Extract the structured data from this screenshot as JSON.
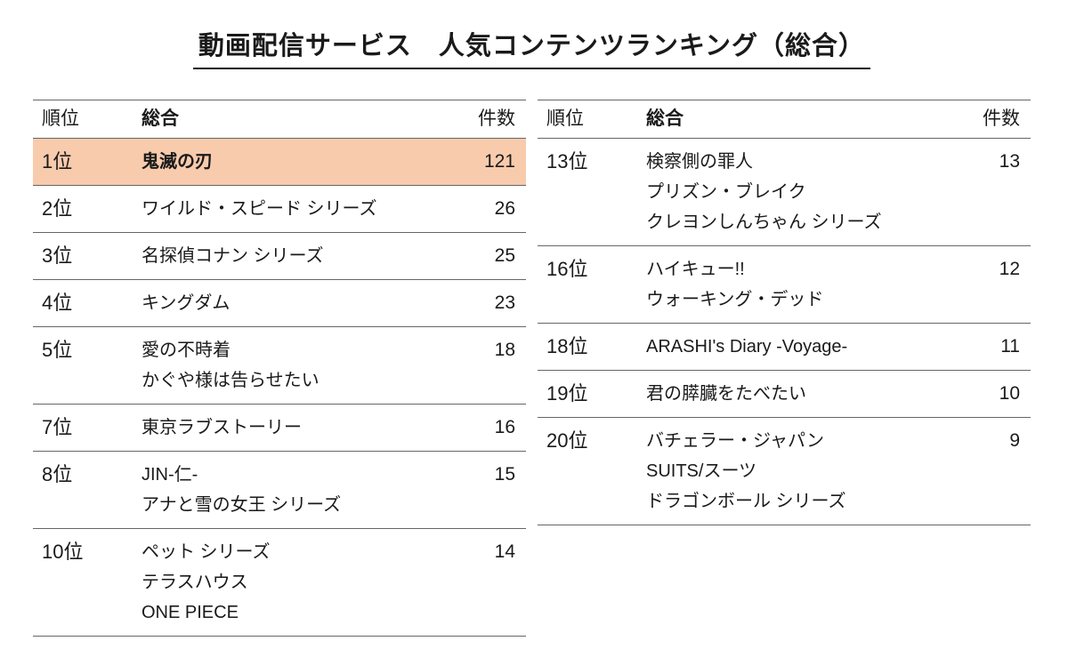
{
  "colors": {
    "highlight": "#F8CBAD",
    "border": "#666666",
    "text": "#1a1a1a"
  },
  "chart_data": {
    "type": "table",
    "title": "動画配信サービス　人気コンテンツランキング（総合）",
    "columns": {
      "rank": "順位",
      "category": "総合",
      "count": "件数"
    },
    "panels": [
      {
        "rows": [
          {
            "rank": "1位",
            "lines": [
              "鬼滅の刃"
            ],
            "count": 121,
            "highlight": true
          },
          {
            "rank": "2位",
            "lines": [
              "ワイルド・スピード シリーズ"
            ],
            "count": 26
          },
          {
            "rank": "3位",
            "lines": [
              "名探偵コナン シリーズ"
            ],
            "count": 25
          },
          {
            "rank": "4位",
            "lines": [
              "キングダム"
            ],
            "count": 23
          },
          {
            "rank": "5位",
            "lines": [
              "愛の不時着",
              "かぐや様は告らせたい"
            ],
            "count": 18
          },
          {
            "rank": "7位",
            "lines": [
              "東京ラブストーリー"
            ],
            "count": 16
          },
          {
            "rank": "8位",
            "lines": [
              "JIN-仁-",
              "アナと雪の女王 シリーズ"
            ],
            "count": 15
          },
          {
            "rank": "10位",
            "lines": [
              "ペット シリーズ",
              "テラスハウス",
              "ONE PIECE"
            ],
            "count": 14
          }
        ]
      },
      {
        "rows": [
          {
            "rank": "13位",
            "lines": [
              "検察側の罪人",
              "プリズン・ブレイク",
              "クレヨンしんちゃん シリーズ"
            ],
            "count": 13
          },
          {
            "rank": "16位",
            "lines": [
              "ハイキュー!!",
              "ウォーキング・デッド"
            ],
            "count": 12
          },
          {
            "rank": "18位",
            "lines": [
              "ARASHI's Diary -Voyage-"
            ],
            "count": 11
          },
          {
            "rank": "19位",
            "lines": [
              "君の膵臓をたべたい"
            ],
            "count": 10
          },
          {
            "rank": "20位",
            "lines": [
              "バチェラー・ジャパン",
              "SUITS/スーツ",
              "ドラゴンボール シリーズ"
            ],
            "count": 9
          }
        ]
      }
    ]
  }
}
